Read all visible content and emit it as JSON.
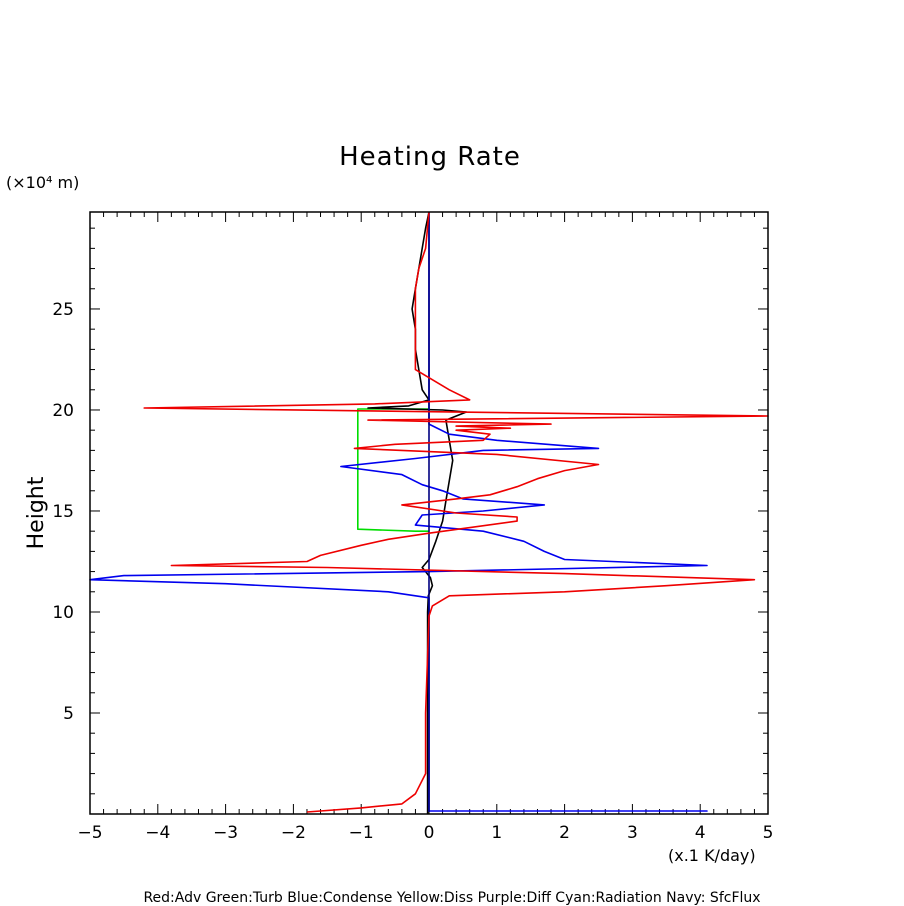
{
  "chart_data": {
    "type": "line",
    "title": "Heating Rate",
    "ylabel": "Height",
    "y_unit_label": "(×10⁴ m)",
    "x_unit_label": "(x.1 K/day)",
    "xlim": [
      -5,
      5
    ],
    "ylim": [
      0,
      29.8
    ],
    "xticks": [
      {
        "value": -5,
        "label": "−5"
      },
      {
        "value": -4,
        "label": "−4"
      },
      {
        "value": -3,
        "label": "−3"
      },
      {
        "value": -2,
        "label": "−2"
      },
      {
        "value": -1,
        "label": "−1"
      },
      {
        "value": 0,
        "label": "0"
      },
      {
        "value": 1,
        "label": "1"
      },
      {
        "value": 2,
        "label": "2"
      },
      {
        "value": 3,
        "label": "3"
      },
      {
        "value": 4,
        "label": "4"
      },
      {
        "value": 5,
        "label": "5"
      }
    ],
    "yticks": [
      {
        "value": 5,
        "label": "5"
      },
      {
        "value": 10,
        "label": "10"
      },
      {
        "value": 15,
        "label": "15"
      },
      {
        "value": 20,
        "label": "20"
      },
      {
        "value": 25,
        "label": "25"
      }
    ],
    "legend_text": "Red:Adv  Green:Turb  Blue:Condense  Yellow:Diss  Purple:Diff  Cyan:Radiation  Navy: SfcFlux",
    "series": [
      {
        "name": "Green:Turb",
        "color": "#00dd00",
        "points": [
          [
            0,
            20.05
          ],
          [
            -1.05,
            20.05
          ],
          [
            -1.05,
            14.1
          ],
          [
            -0.2,
            14.0
          ],
          [
            0,
            14.0
          ]
        ]
      },
      {
        "name": "Black (total)",
        "color": "#000000",
        "points": [
          [
            -0.02,
            0
          ],
          [
            -0.02,
            5
          ],
          [
            -0.02,
            10
          ],
          [
            -0.01,
            10.8
          ],
          [
            0.05,
            11.3
          ],
          [
            0.02,
            11.7
          ],
          [
            -0.1,
            12.2
          ],
          [
            0,
            12.6
          ],
          [
            0.1,
            13.5
          ],
          [
            0.2,
            14.5
          ],
          [
            0.25,
            15.5
          ],
          [
            0.3,
            16.5
          ],
          [
            0.35,
            17.5
          ],
          [
            0.3,
            18.5
          ],
          [
            0.25,
            19.5
          ],
          [
            0.55,
            19.9
          ],
          [
            0.2,
            20.0
          ],
          [
            -0.9,
            20.1
          ],
          [
            -0.3,
            20.2
          ],
          [
            0,
            20.5
          ],
          [
            -0.1,
            21.0
          ],
          [
            -0.15,
            22.0
          ],
          [
            -0.2,
            23.0
          ],
          [
            -0.2,
            24.0
          ],
          [
            -0.25,
            25.0
          ],
          [
            -0.2,
            26.0
          ],
          [
            -0.15,
            27.0
          ],
          [
            -0.1,
            28.0
          ],
          [
            -0.05,
            29.0
          ],
          [
            0,
            29.8
          ]
        ]
      },
      {
        "name": "Blue:Condense",
        "color": "#0000ee",
        "points": [
          [
            0,
            0.15
          ],
          [
            4.1,
            0.15
          ],
          [
            0,
            0.15
          ],
          [
            0,
            10.7
          ],
          [
            -0.6,
            11.0
          ],
          [
            -3.0,
            11.4
          ],
          [
            -5.0,
            11.6
          ],
          [
            -4.5,
            11.8
          ],
          [
            0,
            12.0
          ],
          [
            4.1,
            12.3
          ],
          [
            2.0,
            12.6
          ],
          [
            1.7,
            13.0
          ],
          [
            1.4,
            13.5
          ],
          [
            0.8,
            14.0
          ],
          [
            -0.2,
            14.3
          ],
          [
            -0.1,
            14.8
          ],
          [
            0.8,
            15.0
          ],
          [
            1.7,
            15.3
          ],
          [
            0.5,
            15.6
          ],
          [
            0.2,
            16.0
          ],
          [
            -0.1,
            16.3
          ],
          [
            -0.4,
            16.8
          ],
          [
            -1.3,
            17.2
          ],
          [
            -0.2,
            17.6
          ],
          [
            0.8,
            18.0
          ],
          [
            2.5,
            18.1
          ],
          [
            1.0,
            18.5
          ],
          [
            0.3,
            18.8
          ],
          [
            0,
            19.3
          ],
          [
            0,
            20.5
          ],
          [
            0,
            29.8
          ]
        ]
      },
      {
        "name": "Navy: SfcFlux",
        "color": "#000080",
        "points": [
          [
            0,
            0.1
          ],
          [
            0,
            29.8
          ]
        ]
      },
      {
        "name": "Red:Adv",
        "color": "#ee0000",
        "points": [
          [
            -1.8,
            0.1
          ],
          [
            -1.0,
            0.3
          ],
          [
            -0.4,
            0.5
          ],
          [
            -0.2,
            1.0
          ],
          [
            -0.05,
            2.0
          ],
          [
            -0.05,
            5.0
          ],
          [
            0,
            9.8
          ],
          [
            0.05,
            10.3
          ],
          [
            0.3,
            10.8
          ],
          [
            2.0,
            11.0
          ],
          [
            3.5,
            11.3
          ],
          [
            4.8,
            11.6
          ],
          [
            2.0,
            11.9
          ],
          [
            -1.5,
            12.2
          ],
          [
            -3.8,
            12.3
          ],
          [
            -1.8,
            12.5
          ],
          [
            -1.6,
            12.8
          ],
          [
            -1.0,
            13.3
          ],
          [
            -0.6,
            13.6
          ],
          [
            0,
            13.9
          ],
          [
            1.3,
            14.5
          ],
          [
            1.3,
            14.7
          ],
          [
            0.4,
            14.9
          ],
          [
            -0.4,
            15.3
          ],
          [
            0.4,
            15.6
          ],
          [
            0.9,
            15.8
          ],
          [
            1.3,
            16.2
          ],
          [
            1.6,
            16.6
          ],
          [
            2.0,
            17.0
          ],
          [
            2.5,
            17.3
          ],
          [
            1.0,
            17.8
          ],
          [
            -1.1,
            18.1
          ],
          [
            -0.5,
            18.3
          ],
          [
            0.8,
            18.5
          ],
          [
            0.9,
            18.8
          ],
          [
            0.4,
            19.0
          ],
          [
            1.2,
            19.1
          ],
          [
            0.4,
            19.2
          ],
          [
            1.8,
            19.3
          ],
          [
            -0.9,
            19.5
          ],
          [
            5.0,
            19.7
          ],
          [
            -4.2,
            20.1
          ],
          [
            -0.8,
            20.3
          ],
          [
            0.6,
            20.5
          ],
          [
            0.3,
            21.0
          ],
          [
            -0.2,
            22.0
          ],
          [
            -0.2,
            23.0
          ],
          [
            -0.2,
            24.0
          ],
          [
            -0.2,
            25.0
          ],
          [
            -0.2,
            26.0
          ],
          [
            -0.15,
            27.0
          ],
          [
            -0.05,
            28.0
          ],
          [
            0,
            29.8
          ]
        ]
      }
    ]
  }
}
